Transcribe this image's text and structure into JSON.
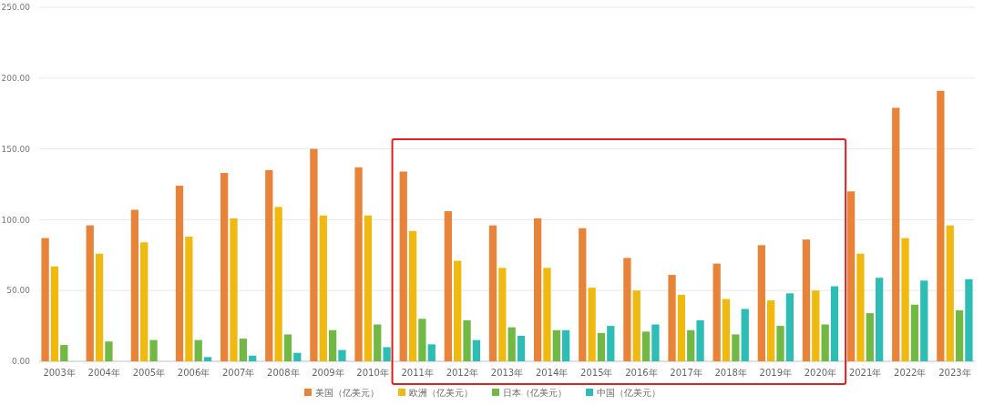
{
  "chart_data": {
    "type": "bar",
    "categories": [
      "2003年",
      "2004年",
      "2005年",
      "2006年",
      "2007年",
      "2008年",
      "2009年",
      "2010年",
      "2011年",
      "2012年",
      "2013年",
      "2014年",
      "2015年",
      "2016年",
      "2017年",
      "2018年",
      "2019年",
      "2020年",
      "2021年",
      "2022年",
      "2023年"
    ],
    "series": [
      {
        "name": "美国（亿美元）",
        "color": "#e8833a",
        "values": [
          87,
          96,
          107,
          124,
          133,
          135,
          150,
          137,
          134,
          106,
          96,
          101,
          94,
          73,
          61,
          69,
          82,
          86,
          120,
          179,
          191
        ]
      },
      {
        "name": "欧洲（亿美元）",
        "color": "#f0b90f",
        "values": [
          67,
          76,
          84,
          88,
          101,
          109,
          103,
          103,
          92,
          71,
          66,
          66,
          52,
          50,
          47,
          44,
          43,
          50,
          76,
          87,
          96
        ]
      },
      {
        "name": "日本（亿美元）",
        "color": "#72b844",
        "values": [
          11.5,
          14,
          15,
          15,
          16,
          19,
          22,
          26,
          30,
          29,
          24,
          22,
          20,
          21,
          22,
          19,
          25,
          26,
          34,
          40,
          36
        ]
      },
      {
        "name": "中国（亿美元）",
        "color": "#2ebdb5",
        "values": [
          null,
          null,
          null,
          3,
          4,
          6,
          8,
          10,
          12,
          15,
          18,
          22,
          25,
          26,
          29,
          37,
          48,
          53,
          59,
          57,
          58
        ]
      }
    ],
    "ylim": [
      0,
      250
    ],
    "yticks": [
      {
        "value": 0,
        "label": "0.00"
      },
      {
        "value": 50,
        "label": "50.00"
      },
      {
        "value": 100,
        "label": "100.00"
      },
      {
        "value": 150,
        "label": "150.00"
      },
      {
        "value": 200,
        "label": "200.00"
      },
      {
        "value": 250,
        "label": "250.00"
      }
    ],
    "grid": "y",
    "legend": "bottom"
  }
}
